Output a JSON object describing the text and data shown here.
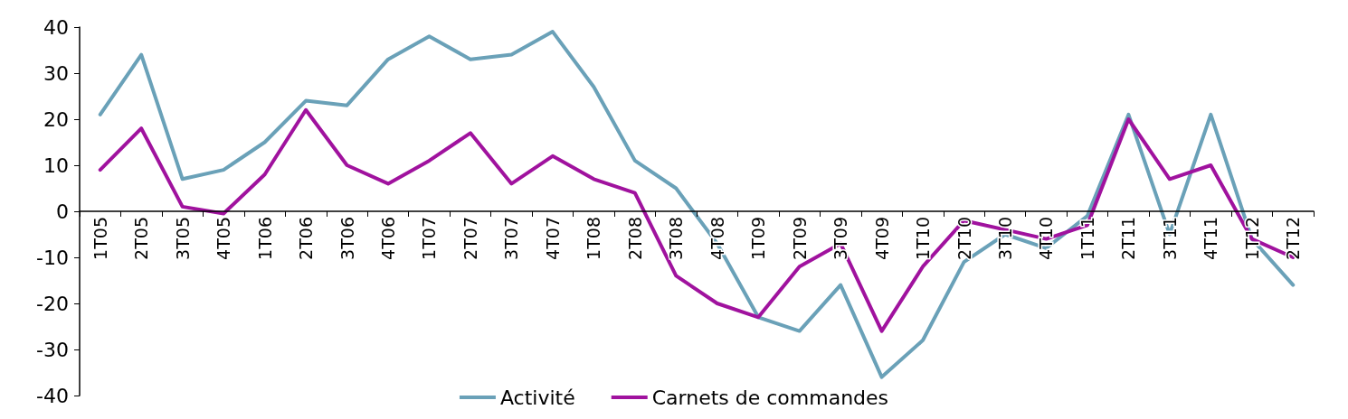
{
  "chart_data": {
    "type": "line",
    "categories": [
      "1T05",
      "2T05",
      "3T05",
      "4T05",
      "1T06",
      "2T06",
      "3T06",
      "4T06",
      "1T07",
      "2T07",
      "3T07",
      "4T07",
      "1T08",
      "2T08",
      "3T08",
      "4T08",
      "1T09",
      "2T09",
      "3T09",
      "4T09",
      "1T10",
      "2T10",
      "3T10",
      "4T10",
      "1T11",
      "2T11",
      "3T11",
      "4T11",
      "1T12",
      "2T12"
    ],
    "series": [
      {
        "name": "Activité",
        "color": "#6aa1b8",
        "values": [
          21,
          34,
          7,
          9,
          15,
          24,
          23,
          33,
          38,
          33,
          34,
          39,
          27,
          11,
          5,
          -7,
          -23,
          -26,
          -16,
          -36,
          -28,
          -11,
          -5,
          -8,
          -1,
          21,
          -5,
          21,
          -6,
          -16
        ]
      },
      {
        "name": "Carnets de commandes",
        "color": "#a0129e",
        "values": [
          9,
          18,
          1,
          -0.5,
          8,
          22,
          10,
          6,
          11,
          17,
          6,
          12,
          7,
          4,
          -14,
          -20,
          -23,
          -12,
          -7,
          -26,
          -12,
          -2,
          -4,
          -6,
          -3,
          20,
          7,
          10,
          -6,
          -10
        ]
      }
    ],
    "ylim": [
      -40,
      40
    ],
    "yticks": [
      -40,
      -30,
      -20,
      -10,
      0,
      10,
      20,
      30,
      40
    ],
    "grid": false,
    "legend": "bottom",
    "marker": "none",
    "line_style": "solid"
  }
}
